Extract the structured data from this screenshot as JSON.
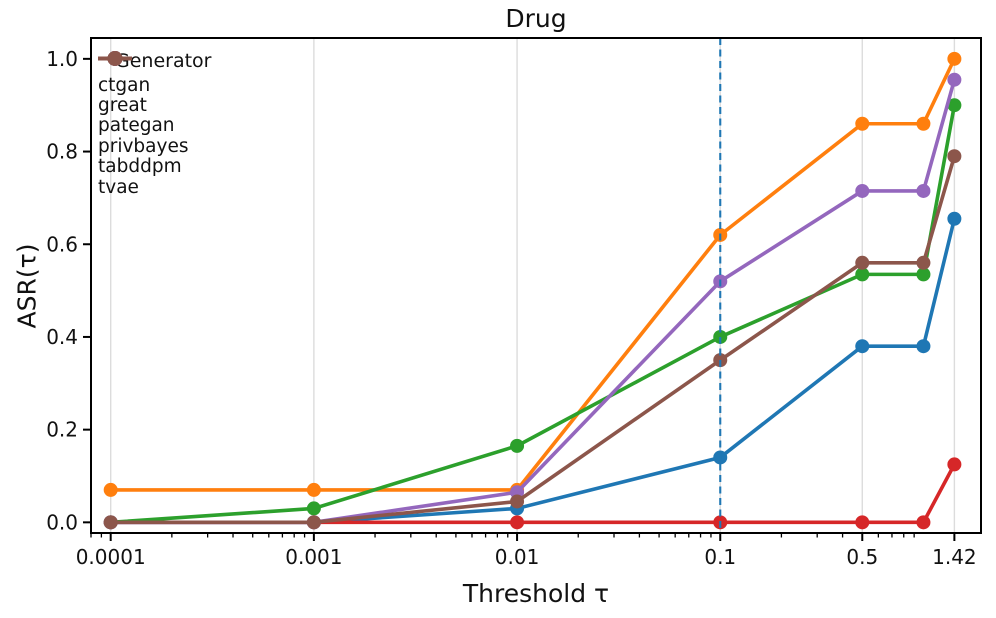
{
  "chart_data": {
    "type": "line",
    "title": "Drug",
    "xlabel": "Threshold τ",
    "ylabel": "ASR(τ)",
    "x_scale": "log",
    "grid": "x-major-only",
    "x": [
      0.0001,
      0.001,
      0.01,
      0.1,
      0.5,
      1.0,
      1.42
    ],
    "x_tick_values": [
      0.0001,
      0.001,
      0.01,
      0.1,
      0.5,
      1.42
    ],
    "x_tick_labels": [
      "0.0001",
      "0.001",
      "0.01",
      "0.1",
      "0.5",
      "1.42"
    ],
    "y_ticks": [
      0.0,
      0.2,
      0.4,
      0.6,
      0.8,
      1.0
    ],
    "xlim": [
      8e-05,
      1.92
    ],
    "ylim": [
      -0.023,
      1.045
    ],
    "vline": {
      "x": 0.1,
      "color": "#1f77b4",
      "style": "dashed"
    },
    "legend": {
      "title": "Generator",
      "position": "upper-left"
    },
    "series": [
      {
        "name": "ctgan",
        "color": "#1f77b4",
        "values": [
          0.0,
          0.0,
          0.03,
          0.14,
          0.38,
          0.38,
          0.655
        ]
      },
      {
        "name": "great",
        "color": "#ff7f0e",
        "values": [
          0.07,
          0.07,
          0.07,
          0.62,
          0.86,
          0.86,
          1.0
        ]
      },
      {
        "name": "pategan",
        "color": "#2ca02c",
        "values": [
          0.0,
          0.03,
          0.165,
          0.4,
          0.535,
          0.535,
          0.9
        ]
      },
      {
        "name": "privbayes",
        "color": "#d62728",
        "values": [
          0.0,
          0.0,
          0.0,
          0.0,
          0.0,
          0.0,
          0.125
        ]
      },
      {
        "name": "tabddpm",
        "color": "#9467bd",
        "values": [
          0.0,
          0.0,
          0.065,
          0.52,
          0.715,
          0.715,
          0.955
        ]
      },
      {
        "name": "tvae",
        "color": "#8c564b",
        "values": [
          0.0,
          0.0,
          0.045,
          0.35,
          0.56,
          0.56,
          0.79
        ]
      }
    ],
    "colors": {
      "background": "#ffffff",
      "grid": "#dcdcdc",
      "axis": "#000000",
      "text": "#111111"
    }
  }
}
